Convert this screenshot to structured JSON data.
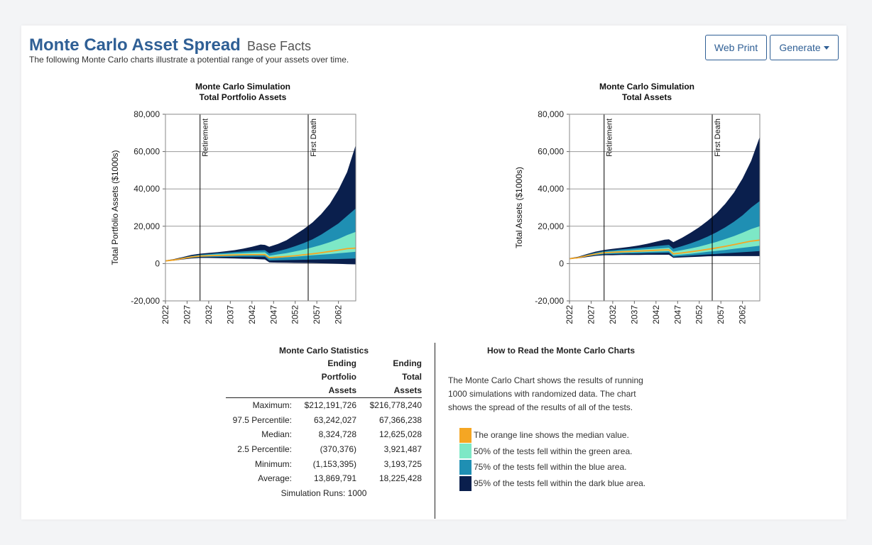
{
  "header": {
    "title": "Monte Carlo Asset Spread",
    "subtitle": "Base Facts",
    "description": "The following Monte Carlo charts illustrate a potential range of your assets over time.",
    "web_print_label": "Web Print",
    "generate_label": "Generate"
  },
  "colors": {
    "title": "#2f5f95",
    "median": "#f5a623",
    "band_50": "#7de8c6",
    "band_75": "#1f8fb3",
    "band_95": "#0a1f4d"
  },
  "chart_data": [
    {
      "type": "area",
      "title": "Monte Carlo Simulation",
      "subtitle": "Total Portfolio Assets",
      "ylabel": "Total Portfolio Assets ($1000s)",
      "xlabel": "",
      "ylim": [
        -20000,
        80000
      ],
      "yticks": [
        -20000,
        0,
        20000,
        40000,
        60000,
        80000
      ],
      "ytick_labels": [
        "-20,000",
        "0",
        "20,000",
        "40,000",
        "60,000",
        "80,000"
      ],
      "xlim": [
        2022,
        2066
      ],
      "xticks": [
        2022,
        2027,
        2032,
        2037,
        2042,
        2047,
        2052,
        2057,
        2062
      ],
      "grid": true,
      "markers": [
        {
          "label": "Retirement",
          "x": 2030
        },
        {
          "label": "First Death",
          "x": 2055
        }
      ],
      "x": [
        2022,
        2024,
        2026,
        2028,
        2030,
        2032,
        2034,
        2036,
        2038,
        2040,
        2042,
        2044,
        2045,
        2046,
        2048,
        2050,
        2052,
        2054,
        2056,
        2058,
        2060,
        2062,
        2064,
        2066
      ],
      "series": [
        {
          "band": "p2_5",
          "values": [
            1200,
            1600,
            2200,
            2700,
            3000,
            3000,
            2900,
            2800,
            2700,
            2600,
            2500,
            2300,
            2200,
            600,
            500,
            400,
            350,
            300,
            250,
            150,
            0,
            -150,
            -300,
            -400
          ]
        },
        {
          "band": "p12_5",
          "values": [
            1300,
            1750,
            2450,
            3050,
            3450,
            3550,
            3550,
            3550,
            3600,
            3650,
            3650,
            3650,
            3600,
            1650,
            1750,
            1850,
            1950,
            2050,
            2150,
            2250,
            2350,
            2450,
            2600,
            2700
          ]
        },
        {
          "band": "p25",
          "values": [
            1350,
            1850,
            2600,
            3300,
            3800,
            4000,
            4100,
            4200,
            4300,
            4450,
            4550,
            4650,
            4650,
            2800,
            3100,
            3400,
            3700,
            4050,
            4400,
            4750,
            5100,
            5500,
            5900,
            6300
          ]
        },
        {
          "name": "Median",
          "band": "median",
          "values": [
            1400,
            1950,
            2750,
            3500,
            4000,
            4200,
            4350,
            4450,
            4600,
            4700,
            4750,
            4800,
            4800,
            3100,
            3450,
            3800,
            4200,
            4700,
            5200,
            5800,
            6500,
            7200,
            8000,
            8300
          ]
        },
        {
          "band": "p75",
          "values": [
            1450,
            2050,
            2950,
            3800,
            4400,
            4700,
            4950,
            5150,
            5400,
            5600,
            5800,
            5950,
            6000,
            4200,
            4900,
            5600,
            6500,
            7500,
            8700,
            10000,
            11500,
            13200,
            15300,
            17000
          ]
        },
        {
          "band": "p87_5",
          "values": [
            1550,
            2150,
            3150,
            4050,
            4700,
            5100,
            5500,
            5800,
            6150,
            6500,
            6800,
            7100,
            7200,
            5500,
            6600,
            7800,
            9300,
            11000,
            13000,
            15500,
            18500,
            21500,
            25500,
            29500
          ]
        },
        {
          "band": "p97_5",
          "values": [
            1700,
            2450,
            3500,
            4650,
            5300,
            5700,
            6100,
            6600,
            7200,
            8000,
            9000,
            10200,
            10000,
            9000,
            10500,
            12500,
            15500,
            18500,
            22000,
            26500,
            32000,
            39500,
            49000,
            63500
          ]
        }
      ]
    },
    {
      "type": "area",
      "title": "Monte Carlo Simulation",
      "subtitle": "Total Assets",
      "ylabel": "Total Assets ($1000s)",
      "xlabel": "",
      "ylim": [
        -20000,
        80000
      ],
      "yticks": [
        -20000,
        0,
        20000,
        40000,
        60000,
        80000
      ],
      "ytick_labels": [
        "-20,000",
        "0",
        "20,000",
        "40,000",
        "60,000",
        "80,000"
      ],
      "xlim": [
        2022,
        2066
      ],
      "xticks": [
        2022,
        2027,
        2032,
        2037,
        2042,
        2047,
        2052,
        2057,
        2062
      ],
      "grid": true,
      "markers": [
        {
          "label": "Retirement",
          "x": 2030
        },
        {
          "label": "First Death",
          "x": 2055
        }
      ],
      "x": [
        2022,
        2024,
        2026,
        2028,
        2030,
        2032,
        2034,
        2036,
        2038,
        2040,
        2042,
        2044,
        2045,
        2046,
        2048,
        2050,
        2052,
        2054,
        2056,
        2058,
        2060,
        2062,
        2064,
        2066
      ],
      "series": [
        {
          "band": "p2_5",
          "values": [
            2400,
            2800,
            3500,
            4100,
            4500,
            4500,
            4600,
            4600,
            4600,
            4700,
            4700,
            4700,
            4700,
            3100,
            3300,
            3500,
            3700,
            3900,
            4000,
            4000,
            4000,
            4000,
            4000,
            4000
          ]
        },
        {
          "band": "p12_5",
          "values": [
            2500,
            2950,
            3800,
            4500,
            5000,
            5150,
            5250,
            5350,
            5450,
            5550,
            5650,
            5750,
            5800,
            3700,
            4000,
            4300,
            4600,
            4900,
            5200,
            5500,
            5800,
            6100,
            6400,
            6700
          ]
        },
        {
          "band": "p25",
          "values": [
            2550,
            3050,
            4000,
            4800,
            5400,
            5600,
            5800,
            5950,
            6100,
            6250,
            6400,
            6550,
            6600,
            4400,
            4800,
            5250,
            5750,
            6300,
            6800,
            7300,
            7900,
            8400,
            9000,
            9600
          ]
        },
        {
          "name": "Median",
          "band": "median",
          "values": [
            2600,
            3150,
            4200,
            5100,
            5800,
            6050,
            6300,
            6500,
            6700,
            6900,
            7100,
            7300,
            7350,
            5200,
            5700,
            6300,
            6950,
            7650,
            8400,
            9250,
            10150,
            11100,
            12000,
            12600
          ]
        },
        {
          "band": "p75",
          "values": [
            2650,
            3250,
            4400,
            5400,
            6200,
            6550,
            6850,
            7100,
            7400,
            7700,
            8000,
            8300,
            8400,
            6400,
            7200,
            8100,
            9100,
            10300,
            11600,
            13100,
            14700,
            16500,
            18500,
            20000
          ]
        },
        {
          "band": "p87_5",
          "values": [
            2750,
            3450,
            4700,
            5800,
            6700,
            7150,
            7550,
            7950,
            8350,
            8800,
            9300,
            9800,
            10000,
            8000,
            9300,
            10800,
            12500,
            14500,
            16800,
            19400,
            22400,
            25800,
            30000,
            33500
          ]
        },
        {
          "band": "p97_5",
          "values": [
            2900,
            3700,
            5100,
            6400,
            7300,
            7900,
            8400,
            9000,
            9700,
            10600,
            11700,
            12800,
            13000,
            11500,
            13800,
            16500,
            19500,
            23000,
            27000,
            32000,
            38000,
            45500,
            55000,
            68000
          ]
        }
      ]
    }
  ],
  "stats": {
    "title": "Monte Carlo Statistics",
    "col_portfolio": [
      "Ending",
      "Portfolio",
      "Assets"
    ],
    "col_total": [
      "Ending",
      "Total",
      "Assets"
    ],
    "rows": [
      {
        "label": "Maximum:",
        "portfolio": "$212,191,726",
        "total": "$216,778,240"
      },
      {
        "label": "97.5 Percentile:",
        "portfolio": "63,242,027",
        "total": "67,366,238"
      },
      {
        "label": "Median:",
        "portfolio": "8,324,728",
        "total": "12,625,028"
      },
      {
        "label": "2.5 Percentile:",
        "portfolio": "(370,376)",
        "total": "3,921,487"
      },
      {
        "label": "Minimum:",
        "portfolio": "(1,153,395)",
        "total": "3,193,725"
      },
      {
        "label": "Average:",
        "portfolio": "13,869,791",
        "total": "18,225,428"
      }
    ],
    "simulation_runs": "Simulation Runs: 1000"
  },
  "howto": {
    "title": "How to Read the Monte Carlo Charts",
    "body_lines": [
      "The Monte Carlo Chart shows the results of running",
      "1000 simulations with randomized data. The chart",
      "shows the spread of the results of all of the tests."
    ],
    "legend": [
      {
        "text": "The orange line shows the median value.",
        "color": "#f5a623"
      },
      {
        "text": "50% of the tests fell within the green area.",
        "color": "#7de8c6"
      },
      {
        "text": "75% of the tests fell within the blue area.",
        "color": "#1f8fb3"
      },
      {
        "text": "95% of the tests fell within the dark blue area.",
        "color": "#0a1f4d"
      }
    ]
  }
}
